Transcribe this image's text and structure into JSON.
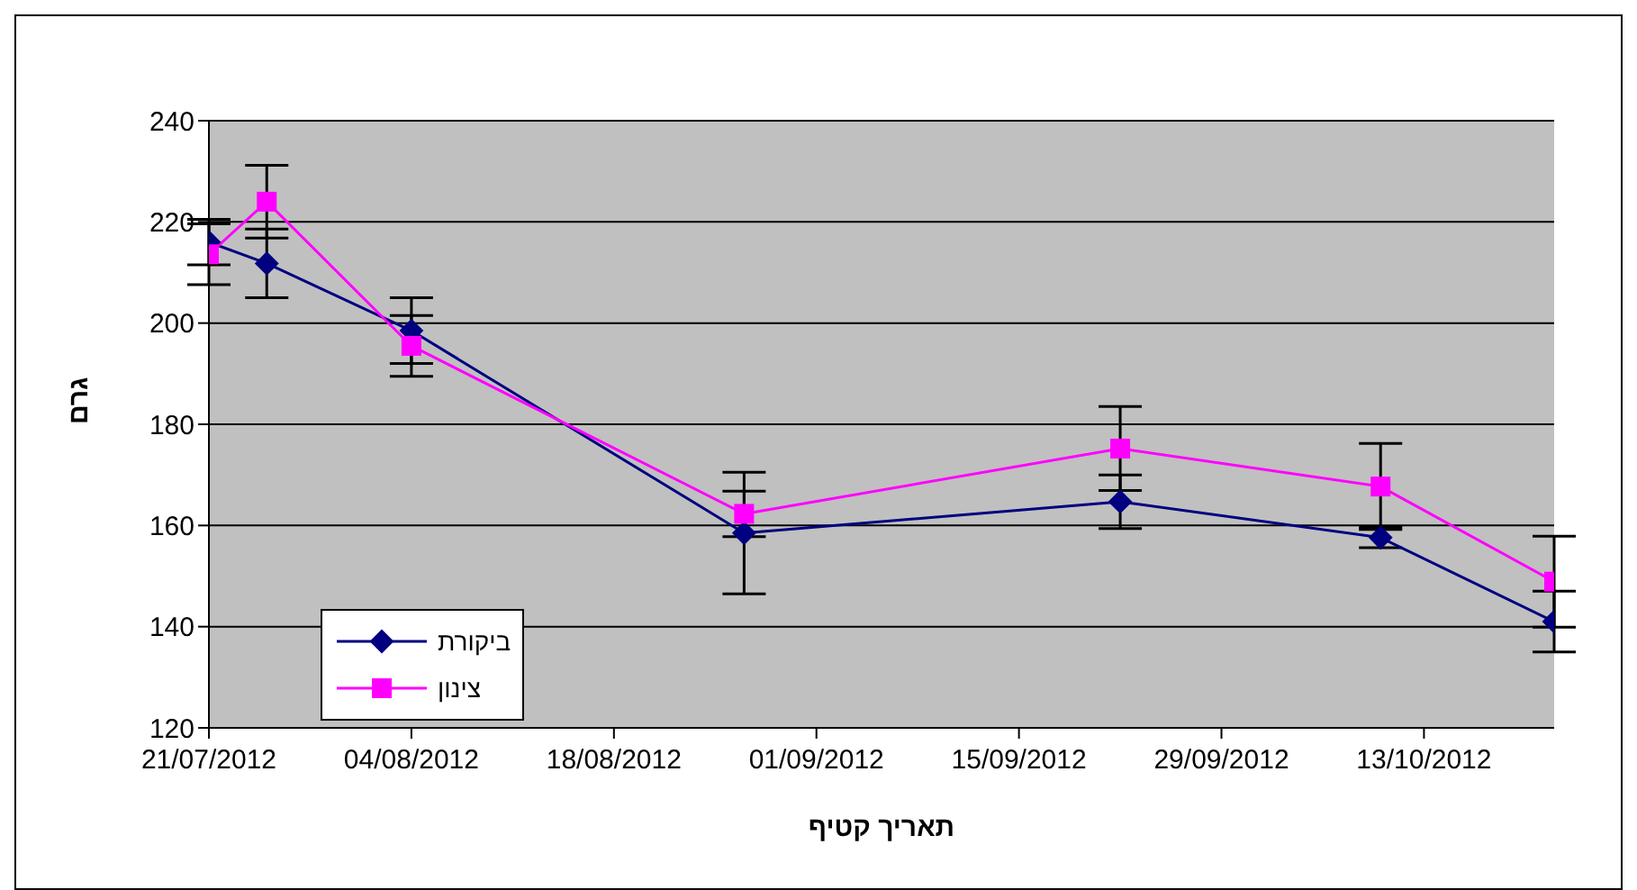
{
  "chart_data": {
    "type": "line",
    "xlabel": "תאריך קטיף",
    "ylabel": "גרם",
    "x": [
      "2012-07-21",
      "2012-07-25",
      "2012-08-04",
      "2012-08-27",
      "2012-09-22",
      "2012-10-10",
      "2012-10-22"
    ],
    "series": [
      {
        "name": "ביקורת",
        "color": "#000080",
        "marker": "diamond",
        "values": [
          216,
          211.8,
          198.5,
          158.5,
          164.7,
          157.6,
          141
        ],
        "errors": [
          4.5,
          6.8,
          6.5,
          12,
          5.3,
          2,
          6
        ]
      },
      {
        "name": "צינון",
        "color": "#ff00ff",
        "marker": "square",
        "values": [
          213.6,
          224,
          195.5,
          162.3,
          175.2,
          167.7,
          148.9
        ],
        "errors": [
          6,
          7.2,
          6,
          4.5,
          8.3,
          8.5,
          9
        ]
      }
    ],
    "xlim": [
      "2012-07-21",
      "2012-10-22"
    ],
    "xticks": [
      {
        "value": "2012-07-21",
        "label": "21/07/2012"
      },
      {
        "value": "2012-08-04",
        "label": "04/08/2012"
      },
      {
        "value": "2012-08-18",
        "label": "18/08/2012"
      },
      {
        "value": "2012-09-01",
        "label": "01/09/2012"
      },
      {
        "value": "2012-09-15",
        "label": "15/09/2012"
      },
      {
        "value": "2012-09-29",
        "label": "29/09/2012"
      },
      {
        "value": "2012-10-13",
        "label": "13/10/2012"
      }
    ],
    "ylim": [
      120,
      240
    ],
    "yticks": [
      120,
      140,
      160,
      180,
      200,
      220,
      240
    ],
    "grid": "y",
    "legend": "bottom left",
    "line_style": "solid"
  }
}
